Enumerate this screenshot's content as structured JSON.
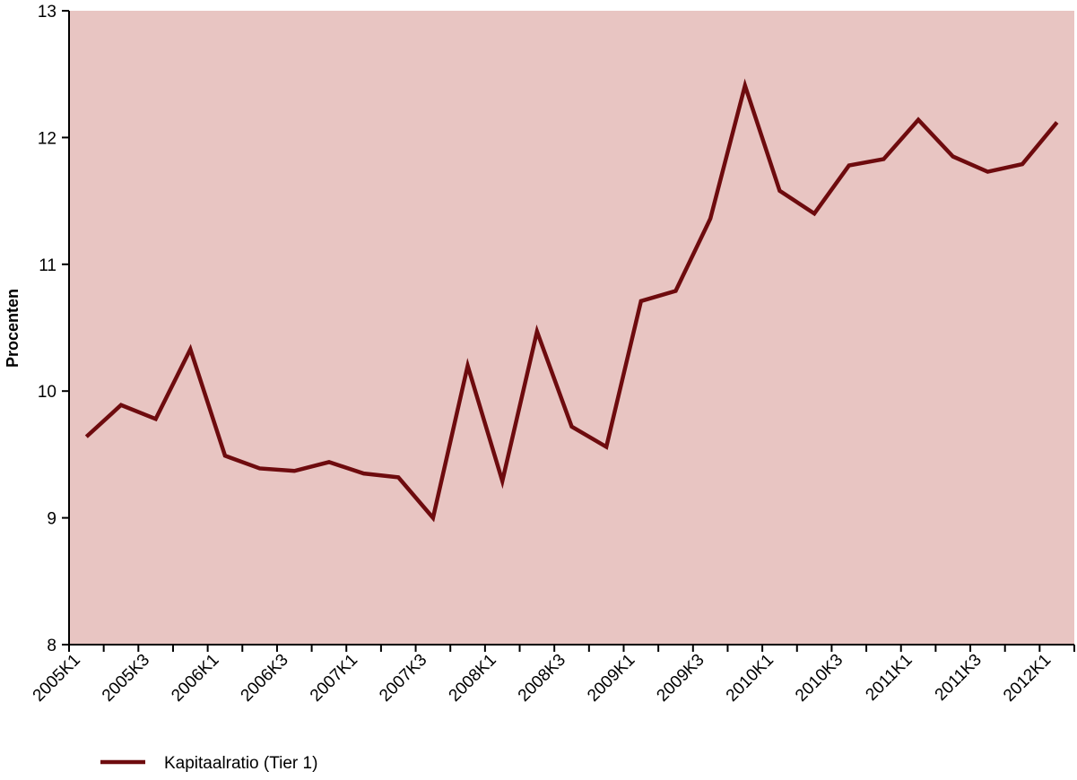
{
  "chart_data": {
    "type": "line",
    "y_label": "Procenten",
    "categories": [
      "2005K1",
      null,
      "2005K3",
      null,
      "2006K1",
      null,
      "2006K3",
      null,
      "2007K1",
      null,
      "2007K3",
      null,
      "2008K1",
      null,
      "2008K3",
      null,
      "2009K1",
      null,
      "2009K3",
      null,
      "2010K1",
      null,
      "2010K3",
      null,
      "2011K1",
      null,
      "2011K3",
      null,
      "2012K1"
    ],
    "series": [
      {
        "name": "Kapitaalratio (Tier 1)",
        "color": "#6e0b0e",
        "values": [
          9.64,
          9.89,
          9.78,
          10.33,
          9.49,
          9.39,
          9.37,
          9.44,
          9.35,
          9.32,
          9.0,
          10.2,
          9.29,
          10.47,
          9.72,
          9.56,
          10.71,
          10.79,
          11.36,
          12.41,
          11.58,
          11.4,
          11.78,
          11.83,
          12.14,
          11.85,
          11.73,
          11.79,
          12.12
        ]
      }
    ],
    "ylim": [
      8,
      13
    ],
    "yticks": [
      8,
      9,
      10,
      11,
      12,
      13
    ],
    "background": "#e8c5c2"
  }
}
